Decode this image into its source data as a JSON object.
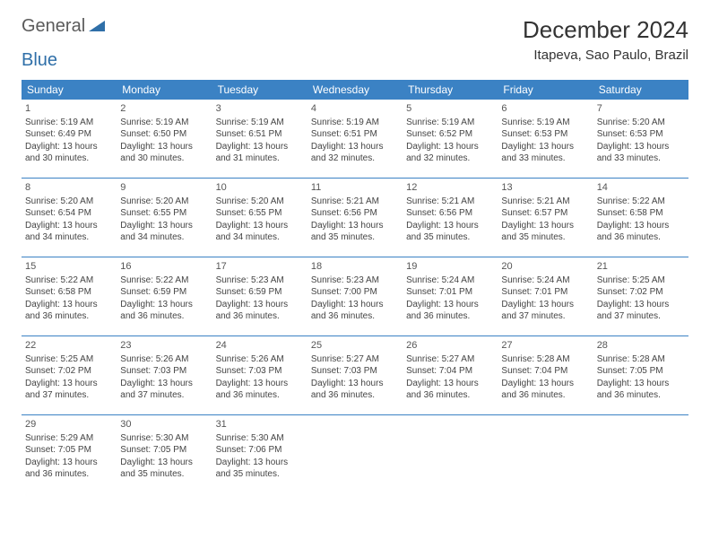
{
  "logo": {
    "text1": "General",
    "text2": "Blue"
  },
  "title": "December 2024",
  "location": "Itapeva, Sao Paulo, Brazil",
  "colors": {
    "header_bg": "#3b82c4",
    "header_fg": "#ffffff",
    "row_border": "#3b82c4",
    "logo_blue": "#2f6fa8"
  },
  "weekdays": [
    "Sunday",
    "Monday",
    "Tuesday",
    "Wednesday",
    "Thursday",
    "Friday",
    "Saturday"
  ],
  "weeks": [
    [
      {
        "n": "1",
        "sr": "Sunrise: 5:19 AM",
        "ss": "Sunset: 6:49 PM",
        "dl": "Daylight: 13 hours and 30 minutes."
      },
      {
        "n": "2",
        "sr": "Sunrise: 5:19 AM",
        "ss": "Sunset: 6:50 PM",
        "dl": "Daylight: 13 hours and 30 minutes."
      },
      {
        "n": "3",
        "sr": "Sunrise: 5:19 AM",
        "ss": "Sunset: 6:51 PM",
        "dl": "Daylight: 13 hours and 31 minutes."
      },
      {
        "n": "4",
        "sr": "Sunrise: 5:19 AM",
        "ss": "Sunset: 6:51 PM",
        "dl": "Daylight: 13 hours and 32 minutes."
      },
      {
        "n": "5",
        "sr": "Sunrise: 5:19 AM",
        "ss": "Sunset: 6:52 PM",
        "dl": "Daylight: 13 hours and 32 minutes."
      },
      {
        "n": "6",
        "sr": "Sunrise: 5:19 AM",
        "ss": "Sunset: 6:53 PM",
        "dl": "Daylight: 13 hours and 33 minutes."
      },
      {
        "n": "7",
        "sr": "Sunrise: 5:20 AM",
        "ss": "Sunset: 6:53 PM",
        "dl": "Daylight: 13 hours and 33 minutes."
      }
    ],
    [
      {
        "n": "8",
        "sr": "Sunrise: 5:20 AM",
        "ss": "Sunset: 6:54 PM",
        "dl": "Daylight: 13 hours and 34 minutes."
      },
      {
        "n": "9",
        "sr": "Sunrise: 5:20 AM",
        "ss": "Sunset: 6:55 PM",
        "dl": "Daylight: 13 hours and 34 minutes."
      },
      {
        "n": "10",
        "sr": "Sunrise: 5:20 AM",
        "ss": "Sunset: 6:55 PM",
        "dl": "Daylight: 13 hours and 34 minutes."
      },
      {
        "n": "11",
        "sr": "Sunrise: 5:21 AM",
        "ss": "Sunset: 6:56 PM",
        "dl": "Daylight: 13 hours and 35 minutes."
      },
      {
        "n": "12",
        "sr": "Sunrise: 5:21 AM",
        "ss": "Sunset: 6:56 PM",
        "dl": "Daylight: 13 hours and 35 minutes."
      },
      {
        "n": "13",
        "sr": "Sunrise: 5:21 AM",
        "ss": "Sunset: 6:57 PM",
        "dl": "Daylight: 13 hours and 35 minutes."
      },
      {
        "n": "14",
        "sr": "Sunrise: 5:22 AM",
        "ss": "Sunset: 6:58 PM",
        "dl": "Daylight: 13 hours and 36 minutes."
      }
    ],
    [
      {
        "n": "15",
        "sr": "Sunrise: 5:22 AM",
        "ss": "Sunset: 6:58 PM",
        "dl": "Daylight: 13 hours and 36 minutes."
      },
      {
        "n": "16",
        "sr": "Sunrise: 5:22 AM",
        "ss": "Sunset: 6:59 PM",
        "dl": "Daylight: 13 hours and 36 minutes."
      },
      {
        "n": "17",
        "sr": "Sunrise: 5:23 AM",
        "ss": "Sunset: 6:59 PM",
        "dl": "Daylight: 13 hours and 36 minutes."
      },
      {
        "n": "18",
        "sr": "Sunrise: 5:23 AM",
        "ss": "Sunset: 7:00 PM",
        "dl": "Daylight: 13 hours and 36 minutes."
      },
      {
        "n": "19",
        "sr": "Sunrise: 5:24 AM",
        "ss": "Sunset: 7:01 PM",
        "dl": "Daylight: 13 hours and 36 minutes."
      },
      {
        "n": "20",
        "sr": "Sunrise: 5:24 AM",
        "ss": "Sunset: 7:01 PM",
        "dl": "Daylight: 13 hours and 37 minutes."
      },
      {
        "n": "21",
        "sr": "Sunrise: 5:25 AM",
        "ss": "Sunset: 7:02 PM",
        "dl": "Daylight: 13 hours and 37 minutes."
      }
    ],
    [
      {
        "n": "22",
        "sr": "Sunrise: 5:25 AM",
        "ss": "Sunset: 7:02 PM",
        "dl": "Daylight: 13 hours and 37 minutes."
      },
      {
        "n": "23",
        "sr": "Sunrise: 5:26 AM",
        "ss": "Sunset: 7:03 PM",
        "dl": "Daylight: 13 hours and 37 minutes."
      },
      {
        "n": "24",
        "sr": "Sunrise: 5:26 AM",
        "ss": "Sunset: 7:03 PM",
        "dl": "Daylight: 13 hours and 36 minutes."
      },
      {
        "n": "25",
        "sr": "Sunrise: 5:27 AM",
        "ss": "Sunset: 7:03 PM",
        "dl": "Daylight: 13 hours and 36 minutes."
      },
      {
        "n": "26",
        "sr": "Sunrise: 5:27 AM",
        "ss": "Sunset: 7:04 PM",
        "dl": "Daylight: 13 hours and 36 minutes."
      },
      {
        "n": "27",
        "sr": "Sunrise: 5:28 AM",
        "ss": "Sunset: 7:04 PM",
        "dl": "Daylight: 13 hours and 36 minutes."
      },
      {
        "n": "28",
        "sr": "Sunrise: 5:28 AM",
        "ss": "Sunset: 7:05 PM",
        "dl": "Daylight: 13 hours and 36 minutes."
      }
    ],
    [
      {
        "n": "29",
        "sr": "Sunrise: 5:29 AM",
        "ss": "Sunset: 7:05 PM",
        "dl": "Daylight: 13 hours and 36 minutes."
      },
      {
        "n": "30",
        "sr": "Sunrise: 5:30 AM",
        "ss": "Sunset: 7:05 PM",
        "dl": "Daylight: 13 hours and 35 minutes."
      },
      {
        "n": "31",
        "sr": "Sunrise: 5:30 AM",
        "ss": "Sunset: 7:06 PM",
        "dl": "Daylight: 13 hours and 35 minutes."
      },
      null,
      null,
      null,
      null
    ]
  ]
}
